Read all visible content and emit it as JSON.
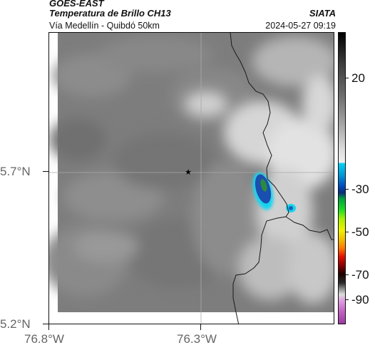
{
  "header": {
    "satellite": "GOES-EAST",
    "product": "Temperatura de Brillo CH13",
    "region": "Vía Medellín - Quibdó 50km",
    "org": "SIATA",
    "datetime": "2024-05-27 09:19"
  },
  "axes": {
    "lat_labels": [
      "5.7°N",
      "5.2°N"
    ],
    "lon_labels": [
      "76.8°W",
      "76.3°W"
    ]
  },
  "colorbar": {
    "labels": [
      "20",
      "-30",
      "-50",
      "-70",
      "-90"
    ]
  },
  "colors": {
    "cold_core": "#1a4fb0",
    "cold_edge": "#19d4ee",
    "cold_center": "#2c8a3c",
    "coast_line": "#1a1a1a"
  },
  "markers": {
    "station_symbol": "★"
  }
}
